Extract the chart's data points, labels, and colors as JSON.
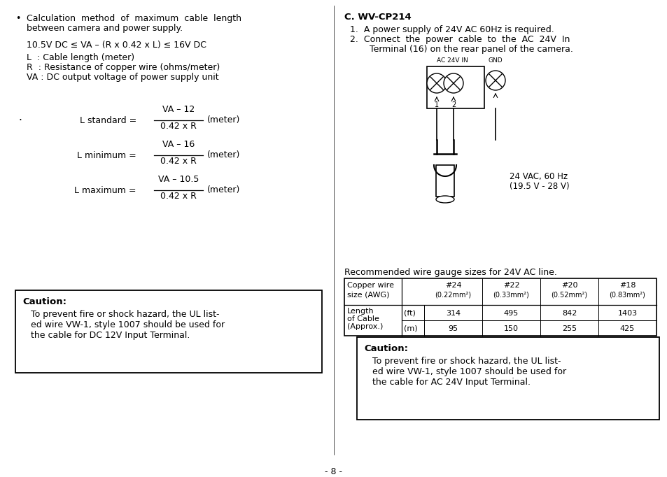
{
  "bg_color": "#ffffff",
  "text_color": "#000000",
  "page_number": "- 8 -",
  "left": {
    "bullet1": "Calculation  method  of  maximum  cable  length",
    "bullet2": "between camera and power supply.",
    "formula": "10.5V DC ≤ VA – (R x 0.42 x L) ≤ 16V DC",
    "def_L": "L  : Cable length (meter)",
    "def_R": "R  : Resistance of copper wire (ohms/meter)",
    "def_VA": "VA : DC output voltage of power supply unit",
    "std_label": "L standard =",
    "std_num": "VA – 12",
    "std_den": "0.42 x R",
    "std_unit": "(meter)",
    "min_label": "L minimum =",
    "min_num": "VA – 16",
    "min_den": "0.42 x R",
    "min_unit": "(meter)",
    "max_label": "L maximum =",
    "max_num": "VA – 10.5",
    "max_den": "0.42 x R",
    "max_unit": "(meter)",
    "caut_title": "Caution:",
    "caut1": "To prevent fire or shock hazard, the UL list-",
    "caut2": "ed wire VW-1, style 1007 should be used for",
    "caut3": "the cable for DC 12V Input Terminal."
  },
  "right": {
    "title": "C. WV-CP214",
    "item1": "1.  A power supply of 24V AC 60Hz is required.",
    "item2a": "2.  Connect  the  power  cable  to  the  AC  24V  In",
    "item2b": "    Terminal (16) on the rear panel of the camera.",
    "ac_label": "AC 24V IN",
    "gnd_label": "GND",
    "num1": "1",
    "num2": "2",
    "volt1": "24 VAC, 60 Hz",
    "volt2": "(19.5 V - 28 V)",
    "tbl_title": "Recommended wire gauge sizes for 24V AC line.",
    "hdr1": "#24",
    "hdr1b": "(0.22mm²)",
    "hdr2": "#22",
    "hdr2b": "(0.33mm²)",
    "hdr3": "#20",
    "hdr3b": "(0.52mm²)",
    "hdr4": "#18",
    "hdr4b": "(0.83mm²)",
    "tleft1": "Copper wire",
    "tleft2": "size (AWG)",
    "tleft3": "Length",
    "tleft4": "of Cable",
    "tleft5": "(Approx.)",
    "unit_ft": "(ft)",
    "unit_m": "(m)",
    "ft": [
      "314",
      "495",
      "842",
      "1403"
    ],
    "m": [
      "95",
      "150",
      "255",
      "425"
    ],
    "caut_title": "Caution:",
    "caut1": "To prevent fire or shock hazard, the UL list-",
    "caut2": "ed wire VW-1, style 1007 should be used for",
    "caut3": "the cable for AC 24V Input Terminal."
  }
}
